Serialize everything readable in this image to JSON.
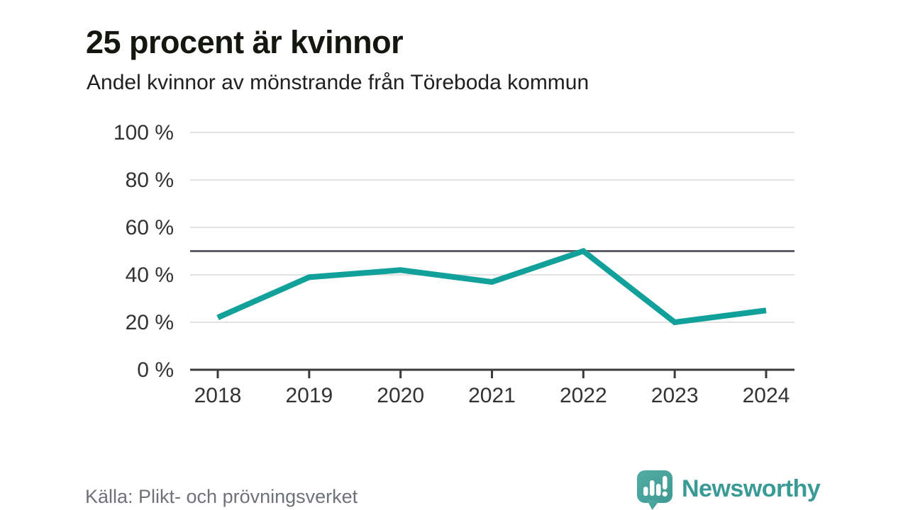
{
  "header": {
    "title": "25 procent är kvinnor",
    "subtitle": "Andel kvinnor av mönstrande från Töreboda kommun"
  },
  "chart_data": {
    "type": "line",
    "x": [
      "2018",
      "2019",
      "2020",
      "2021",
      "2022",
      "2023",
      "2024"
    ],
    "series": [
      {
        "name": "Andel kvinnor av mönstrande",
        "values": [
          22,
          39,
          42,
          37,
          50,
          20,
          25
        ]
      }
    ],
    "title": "25 procent är kvinnor",
    "subtitle": "Andel kvinnor av mönstrande från Töreboda kommun",
    "xlabel": "",
    "ylabel": "",
    "ylim": [
      0,
      100
    ],
    "yticks": [
      0,
      20,
      40,
      60,
      80,
      100
    ],
    "ytick_format": "{v} %",
    "reference_line": 50,
    "grid": "horizontal",
    "legend": false,
    "line_color": "#12a19a",
    "reference_line_color": "#5c5f68",
    "grid_color": "#e2e2e2",
    "axis_color": "#3b3b3b",
    "tick_label_color": "#333333"
  },
  "footer": {
    "source": "Källa: Plikt- och prövningsverket",
    "logo_text": "Newsworthy",
    "logo_color": "#3a9a96",
    "logo_icon": "newsworthy-speech-bubble-bar-chart-icon"
  }
}
